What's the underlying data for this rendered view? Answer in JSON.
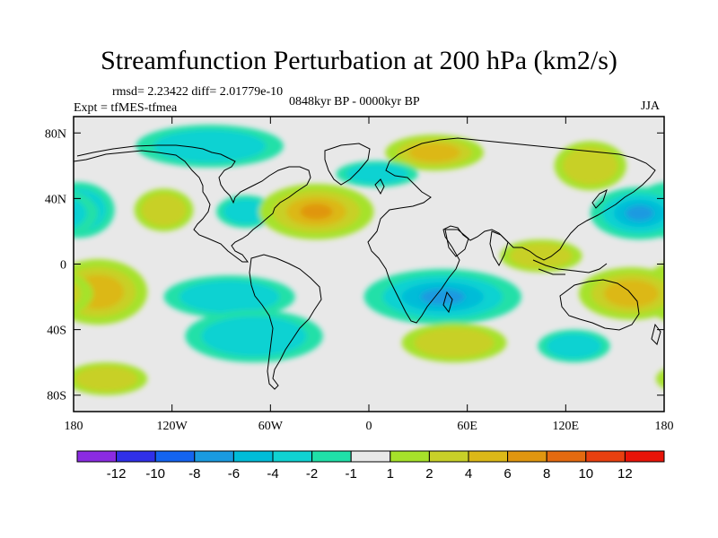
{
  "title": "Streamfunction Perturbation at 200 hPa (km2/s)",
  "stats_line": "rmsd= 2.23422 diff= 2.01779e-10",
  "experiment_line": "Expt = tfMES-tfmea",
  "period_line": "0848kyr BP - 0000kyr BP",
  "season": "JJA",
  "map": {
    "projection": "cylindrical equidistant",
    "lon_range": [
      -180,
      180
    ],
    "lat_range": [
      -90,
      90
    ],
    "x_ticks": [
      {
        "lon": -180,
        "label": "180"
      },
      {
        "lon": -120,
        "label": "120W"
      },
      {
        "lon": -60,
        "label": "60W"
      },
      {
        "lon": 0,
        "label": "0"
      },
      {
        "lon": 60,
        "label": "60E"
      },
      {
        "lon": 120,
        "label": "120E"
      },
      {
        "lon": 180,
        "label": "180"
      }
    ],
    "y_ticks": [
      {
        "lat": 80,
        "label": "80N"
      },
      {
        "lat": 40,
        "label": "40N"
      },
      {
        "lat": 0,
        "label": "0"
      },
      {
        "lat": -40,
        "label": "40S"
      },
      {
        "lat": -80,
        "label": "80S"
      }
    ],
    "background_color": "#e8e8e8",
    "anomalies": [
      {
        "lon": -177,
        "lat": 33,
        "rlon": 22,
        "rlat": 17,
        "value": -5
      },
      {
        "lon": -125,
        "lat": 33,
        "rlon": 18,
        "rlat": 13,
        "value": 2
      },
      {
        "lon": -97,
        "lat": 72,
        "rlon": 45,
        "rlat": 13,
        "value": -2
      },
      {
        "lon": -75,
        "lat": 32,
        "rlon": 18,
        "rlat": 10,
        "value": -2
      },
      {
        "lon": -32,
        "lat": 32,
        "rlon": 35,
        "rlat": 17,
        "value": 6
      },
      {
        "lon": 40,
        "lat": 68,
        "rlon": 30,
        "rlat": 11,
        "value": 4
      },
      {
        "lon": 5,
        "lat": 55,
        "rlon": 25,
        "rlat": 8,
        "value": -2
      },
      {
        "lon": 135,
        "lat": 60,
        "rlon": 22,
        "rlat": 15,
        "value": 2
      },
      {
        "lon": 165,
        "lat": 31,
        "rlon": 30,
        "rlat": 16,
        "value": -6
      },
      {
        "lon": -165,
        "lat": -17,
        "rlon": 30,
        "rlat": 20,
        "value": 5
      },
      {
        "lon": -85,
        "lat": -20,
        "rlon": 40,
        "rlat": 13,
        "value": -3
      },
      {
        "lon": -70,
        "lat": -44,
        "rlon": 42,
        "rlat": 16,
        "value": -2
      },
      {
        "lon": -160,
        "lat": -70,
        "rlon": 25,
        "rlat": 10,
        "value": 2
      },
      {
        "lon": 45,
        "lat": -20,
        "rlon": 48,
        "rlat": 17,
        "value": -6
      },
      {
        "lon": 52,
        "lat": -48,
        "rlon": 32,
        "rlat": 12,
        "value": 3
      },
      {
        "lon": 160,
        "lat": -18,
        "rlon": 32,
        "rlat": 16,
        "value": 5
      },
      {
        "lon": 125,
        "lat": -50,
        "rlon": 22,
        "rlat": 10,
        "value": -2
      },
      {
        "lon": 105,
        "lat": 5,
        "rlon": 25,
        "rlat": 10,
        "value": 2
      }
    ]
  },
  "colorbar": {
    "colors": [
      "#8b2be2",
      "#3030e8",
      "#1464f0",
      "#1a9ae0",
      "#00bcd8",
      "#10d2d2",
      "#20e0a8",
      "#e8e8e8",
      "#a6e22a",
      "#c8d028",
      "#dcb818",
      "#e09610",
      "#e46a10",
      "#e84010",
      "#e81408"
    ],
    "labels": [
      "-12",
      "-10",
      "-8",
      "-6",
      "-4",
      "-2",
      "-1",
      "1",
      "2",
      "4",
      "6",
      "8",
      "10",
      "12"
    ]
  }
}
